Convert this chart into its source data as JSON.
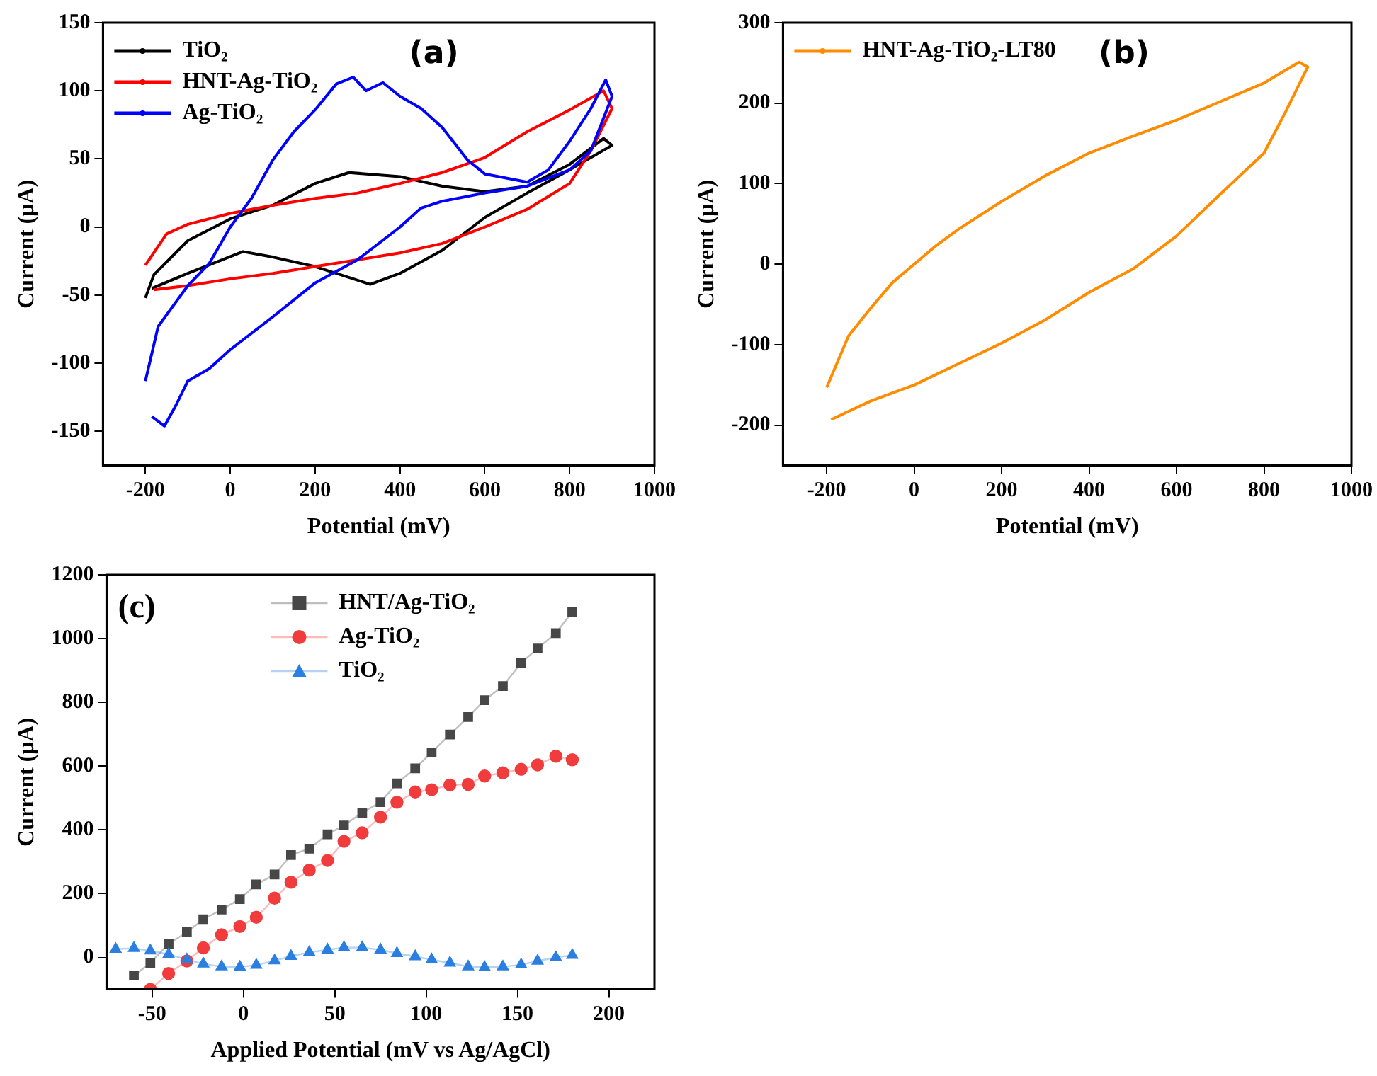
{
  "chart_data": [
    {
      "type": "line",
      "annotations": [
        "(a)"
      ],
      "xlabel": "Potential (mV)",
      "ylabel": "Current (μA)",
      "xlim": [
        -300,
        1000
      ],
      "xticks": [
        -200,
        0,
        200,
        400,
        600,
        800,
        1000
      ],
      "ylim": [
        -175,
        150
      ],
      "yticks": [
        -150,
        -100,
        -50,
        0,
        50,
        100,
        150
      ],
      "legend": "top left",
      "marker": "none",
      "series": [
        {
          "name": "TiO₂",
          "color": "#000000",
          "x": [
            -200,
            -180,
            -100,
            0,
            100,
            200,
            280,
            400,
            500,
            600,
            700,
            800,
            880,
            900,
            800,
            700,
            600,
            500,
            400,
            330,
            200,
            100,
            30,
            -100,
            -185
          ],
          "values": [
            -52,
            -35,
            -10,
            6,
            16,
            32,
            40,
            37,
            30,
            26,
            30,
            46,
            65,
            60,
            42,
            25,
            7,
            -17,
            -34,
            -42,
            -29,
            -22,
            -18,
            -34,
            -45
          ]
        },
        {
          "name": "HNT-Ag-TiO₂",
          "color": "#ff0000",
          "x": [
            -200,
            -150,
            -100,
            0,
            100,
            200,
            300,
            400,
            500,
            600,
            700,
            800,
            880,
            900,
            850,
            800,
            700,
            600,
            500,
            400,
            300,
            200,
            100,
            0,
            -100,
            -180
          ],
          "values": [
            -28,
            -5,
            2,
            10,
            16,
            21,
            25,
            32,
            40,
            51,
            70,
            86,
            100,
            87,
            56,
            32,
            13,
            0,
            -12,
            -19,
            -24,
            -29,
            -34,
            -38,
            -43,
            -46
          ]
        },
        {
          "name": "Ag-TiO₂",
          "color": "#0000ff",
          "x": [
            -200,
            -170,
            -100,
            -50,
            0,
            50,
            100,
            150,
            200,
            250,
            290,
            320,
            360,
            400,
            450,
            500,
            560,
            600,
            700,
            750,
            800,
            850,
            885,
            900,
            850,
            800,
            700,
            600,
            500,
            450,
            400,
            300,
            200,
            100,
            0,
            -50,
            -100,
            -130,
            -155,
            -185
          ],
          "values": [
            -113,
            -73,
            -43,
            -27,
            0,
            21,
            49,
            70,
            86,
            105,
            110,
            100,
            106,
            96,
            87,
            73,
            49,
            39,
            33,
            42,
            63,
            87,
            108,
            96,
            56,
            42,
            30,
            25,
            19,
            14,
            0,
            -24,
            -41,
            -66,
            -90,
            -104,
            -113,
            -132,
            -146,
            -139
          ]
        }
      ]
    },
    {
      "type": "line",
      "annotations": [
        "(b)"
      ],
      "xlabel": "Potential (mV)",
      "ylabel": "Current (μA)",
      "xlim": [
        -300,
        1000
      ],
      "xticks": [
        -200,
        0,
        200,
        400,
        600,
        800,
        1000
      ],
      "ylim": [
        -250,
        300
      ],
      "yticks": [
        -200,
        -100,
        0,
        100,
        200,
        300
      ],
      "legend": "top left",
      "marker": "none",
      "series": [
        {
          "name": "HNT-Ag-TiO₂-LT80",
          "color": "#ff8c00",
          "x": [
            -200,
            -150,
            -100,
            -50,
            0,
            50,
            100,
            200,
            300,
            400,
            500,
            600,
            700,
            800,
            880,
            900,
            850,
            800,
            700,
            600,
            500,
            400,
            300,
            200,
            100,
            0,
            -30,
            -100,
            -190
          ],
          "values": [
            -153,
            -89,
            -55,
            -23,
            0,
            23,
            43,
            78,
            110,
            138,
            159,
            179,
            202,
            225,
            251,
            245,
            190,
            138,
            87,
            35,
            -6,
            -35,
            -69,
            -98,
            -124,
            -150,
            -156,
            -170,
            -193
          ]
        }
      ]
    },
    {
      "type": "line",
      "annotations": [
        "(c)"
      ],
      "xlabel": "Applied Potential (mV vs Ag/AgCl)",
      "ylabel": "Current (μA)",
      "xlim": [
        -75,
        225
      ],
      "xticks": [
        -50,
        0,
        50,
        100,
        150,
        200
      ],
      "ylim": [
        -100,
        1200
      ],
      "yticks": [
        0,
        200,
        400,
        600,
        800,
        1000,
        1200
      ],
      "legend": "top",
      "series": [
        {
          "name": "HNT/Ag-TiO₂",
          "color": "#474747",
          "marker": "square",
          "x": [
            -60,
            -51,
            -41,
            -31,
            -22,
            -12,
            -2,
            7,
            17,
            26,
            36,
            46,
            55,
            65,
            75,
            84,
            94,
            103,
            113,
            123,
            132,
            142,
            152,
            161,
            171,
            180
          ],
          "values": [
            -57,
            -17,
            43,
            79,
            120,
            150,
            183,
            229,
            260,
            321,
            341,
            386,
            414,
            454,
            487,
            546,
            593,
            643,
            699,
            754,
            807,
            851,
            924,
            969,
            1017,
            1084
          ]
        },
        {
          "name": "Ag-TiO₂",
          "color": "#f03c3c",
          "marker": "circle",
          "x": [
            -51,
            -41,
            -31,
            -22,
            -12,
            -2,
            7,
            17,
            26,
            36,
            46,
            55,
            65,
            75,
            84,
            94,
            103,
            113,
            123,
            132,
            142,
            152,
            161,
            171,
            180
          ],
          "values": [
            -100,
            -50,
            -11,
            30,
            71,
            97,
            126,
            186,
            236,
            274,
            304,
            364,
            391,
            440,
            487,
            519,
            526,
            541,
            543,
            569,
            579,
            590,
            604,
            631,
            620
          ]
        },
        {
          "name": "TiO₂",
          "color": "#2a7fe0",
          "marker": "triangle",
          "x": [
            -70,
            -60,
            -51,
            -41,
            -31,
            -22,
            -12,
            -2,
            7,
            17,
            26,
            36,
            46,
            55,
            65,
            75,
            84,
            94,
            103,
            113,
            123,
            132,
            142,
            152,
            161,
            171,
            180
          ],
          "values": [
            26,
            29,
            21,
            10,
            -7,
            -20,
            -29,
            -30,
            -24,
            -10,
            4,
            16,
            24,
            31,
            31,
            24,
            13,
            3,
            -7,
            -17,
            -29,
            -31,
            -29,
            -23,
            -11,
            0,
            7
          ]
        }
      ]
    }
  ]
}
